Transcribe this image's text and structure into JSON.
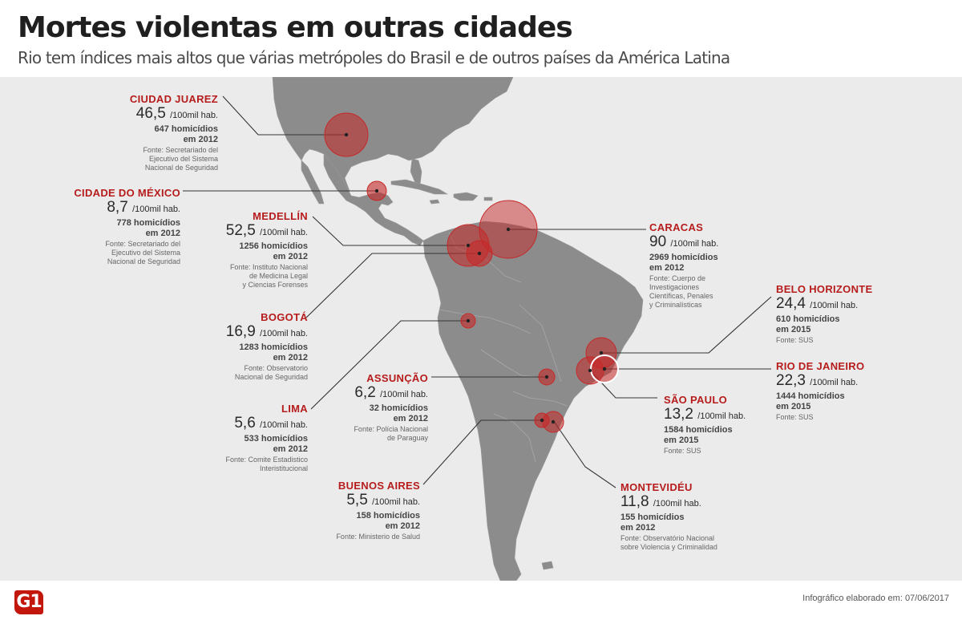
{
  "header": {
    "title": "Mortes violentas em outras cidades",
    "subtitle": "Rio tem índices mais altos que várias metrópoles do Brasil e de outros países da América Latina"
  },
  "map": {
    "colors": {
      "land": "#8c8c8c",
      "water": "#ebebeb",
      "bubble": "#c62828",
      "leader": "#333333"
    }
  },
  "cities": [
    {
      "name": "CIUDAD JUAREZ",
      "rate": "46,5",
      "unit": "/100mil hab.",
      "count": "647 homicídios",
      "year": "em 2012",
      "source": [
        "Fonte: Secretariado del",
        "Ejecutivo del Sistema",
        "Nacional de Seguridad"
      ]
    },
    {
      "name": "CIDADE DO MÉXICO",
      "rate": "8,7",
      "unit": "/100mil hab.",
      "count": "778 homicídios",
      "year": "em 2012",
      "source": [
        "Fonte: Secretariado del",
        "Ejecutivo del Sistema",
        "Nacional de Seguridad"
      ]
    },
    {
      "name": "MEDELLÍN",
      "rate": "52,5",
      "unit": "/100mil hab.",
      "count": "1256 homicídios",
      "year": "em 2012",
      "source": [
        "Fonte: Instituto Nacional",
        "de Medicina Legal",
        "y Ciencias Forenses"
      ]
    },
    {
      "name": "BOGOTÁ",
      "rate": "16,9",
      "unit": "/100mil hab.",
      "count": "1283 homicídios",
      "year": "em 2012",
      "source": [
        "Fonte: Observatorio",
        "Nacional de Seguridad"
      ]
    },
    {
      "name": "LIMA",
      "rate": "5,6",
      "unit": "/100mil hab.",
      "count": "533 homicídios",
      "year": "em 2012",
      "source": [
        "Fonte: Comite Estadistico",
        "Interistitucional"
      ]
    },
    {
      "name": "ASSUNÇÃO",
      "rate": "6,2",
      "unit": "/100mil hab.",
      "count": "32 homicídios",
      "year": "em 2012",
      "source": [
        "Fonte: Polícia Nacional",
        "de Paraguay"
      ]
    },
    {
      "name": "BUENOS AIRES",
      "rate": "5,5",
      "unit": "/100mil hab.",
      "count": "158 homicídios",
      "year": "em 2012",
      "source": [
        "Fonte: Ministerio de Salud"
      ]
    },
    {
      "name": "CARACAS",
      "rate": "90",
      "unit": "/100mil hab.",
      "count": "2969 homicídios",
      "year": "em 2012",
      "source": [
        "Fonte: Cuerpo de",
        "Investigaciones",
        "Científicas, Penales",
        "y Criminalísticas"
      ]
    },
    {
      "name": "BELO HORIZONTE",
      "rate": "24,4",
      "unit": "/100mil hab.",
      "count": "610 homicídios",
      "year": "em 2015",
      "source": [
        "Fonte: SUS"
      ]
    },
    {
      "name": "RIO DE JANEIRO",
      "rate": "22,3",
      "unit": "/100mil hab.",
      "count": "1444 homicídios",
      "year": "em 2015",
      "source": [
        "Fonte: SUS"
      ]
    },
    {
      "name": "SÃO PAULO",
      "rate": "13,2",
      "unit": "/100mil hab.",
      "count": "1584 homicídios",
      "year": "em 2015",
      "source": [
        "Fonte: SUS"
      ]
    },
    {
      "name": "MONTEVIDÉU",
      "rate": "11,8",
      "unit": "/100mil hab.",
      "count": "155 homicídios",
      "year": "em 2012",
      "source": [
        "Fonte: Observatório Nacional",
        "sobre Violencia y Criminalidad"
      ]
    }
  ],
  "footer": {
    "logo": "G1",
    "credit": "Infográfico elaborado em: 07/06/2017"
  }
}
